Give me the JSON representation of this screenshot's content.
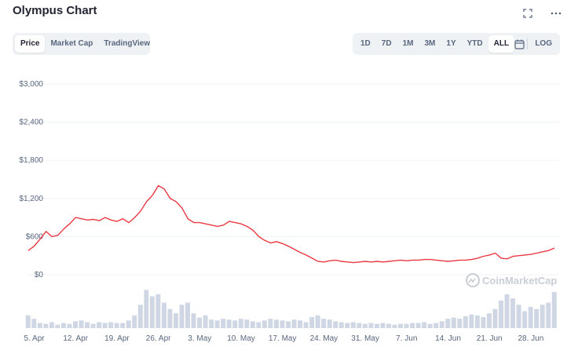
{
  "header": {
    "title": "Olympus Chart",
    "fullscreen_icon": "expand-icon",
    "more_icon": "more-horizontal-icon"
  },
  "view_tabs": [
    {
      "label": "Price",
      "active": true
    },
    {
      "label": "Market Cap",
      "active": false
    },
    {
      "label": "TradingView",
      "active": false
    }
  ],
  "range_tabs": [
    {
      "label": "1D",
      "active": false
    },
    {
      "label": "7D",
      "active": false
    },
    {
      "label": "1M",
      "active": false
    },
    {
      "label": "3M",
      "active": false
    },
    {
      "label": "1Y",
      "active": false
    },
    {
      "label": "YTD",
      "active": false
    },
    {
      "label": "ALL",
      "active": true
    }
  ],
  "calendar_icon": "calendar-icon",
  "log_label": "LOG",
  "watermark": "CoinMarketCap",
  "colors": {
    "price_line": "#ea3943",
    "volume_bar": "#cfd6e4",
    "grid": "#eff2f5",
    "axis_text": "#58667e"
  },
  "chart_data": {
    "type": "line",
    "title": "",
    "xlabel": "",
    "ylabel": "",
    "ylim": [
      0,
      3000
    ],
    "yticks": [
      "$3,000",
      "$2,400",
      "$1,800",
      "$1,200",
      "$600",
      "$0"
    ],
    "ytick_values": [
      3000,
      2400,
      1800,
      1200,
      600,
      0
    ],
    "xticks": [
      "5. Apr",
      "12. Apr",
      "19. Apr",
      "26. Apr",
      "3. May",
      "10. May",
      "17. May",
      "24. May",
      "31. May",
      "7. Jun",
      "14. Jun",
      "21. Jun",
      "28. Jun"
    ],
    "grid": true,
    "series": [
      {
        "x": [
          "2021-04-04",
          "2021-04-05",
          "2021-04-06",
          "2021-04-07",
          "2021-04-08",
          "2021-04-09",
          "2021-04-10",
          "2021-04-11",
          "2021-04-12",
          "2021-04-13",
          "2021-04-14",
          "2021-04-15",
          "2021-04-16",
          "2021-04-17",
          "2021-04-18",
          "2021-04-19",
          "2021-04-20",
          "2021-04-21",
          "2021-04-22",
          "2021-04-23",
          "2021-04-24",
          "2021-04-25",
          "2021-04-26",
          "2021-04-27",
          "2021-04-28",
          "2021-04-29",
          "2021-04-30",
          "2021-05-01",
          "2021-05-02",
          "2021-05-03",
          "2021-05-04",
          "2021-05-05",
          "2021-05-06",
          "2021-05-07",
          "2021-05-08",
          "2021-05-09",
          "2021-05-10",
          "2021-05-11",
          "2021-05-12",
          "2021-05-13",
          "2021-05-14",
          "2021-05-15",
          "2021-05-16",
          "2021-05-17",
          "2021-05-18",
          "2021-05-19",
          "2021-05-20",
          "2021-05-21",
          "2021-05-22",
          "2021-05-23",
          "2021-05-24",
          "2021-05-25",
          "2021-05-26",
          "2021-05-27",
          "2021-05-28",
          "2021-05-29",
          "2021-05-30",
          "2021-05-31",
          "2021-06-01",
          "2021-06-02",
          "2021-06-03",
          "2021-06-04",
          "2021-06-05",
          "2021-06-06",
          "2021-06-07",
          "2021-06-08",
          "2021-06-09",
          "2021-06-10",
          "2021-06-11",
          "2021-06-12",
          "2021-06-13",
          "2021-06-14",
          "2021-06-15",
          "2021-06-16",
          "2021-06-17",
          "2021-06-18",
          "2021-06-19",
          "2021-06-20",
          "2021-06-21",
          "2021-06-22",
          "2021-06-23",
          "2021-06-24",
          "2021-06-25",
          "2021-06-26",
          "2021-06-27",
          "2021-06-28",
          "2021-06-29",
          "2021-06-30",
          "2021-07-01",
          "2021-07-02"
        ],
        "values": [
          380,
          450,
          560,
          680,
          600,
          620,
          720,
          800,
          900,
          880,
          860,
          870,
          850,
          900,
          860,
          840,
          880,
          820,
          900,
          1000,
          1150,
          1250,
          1400,
          1350,
          1200,
          1150,
          1050,
          880,
          820,
          820,
          800,
          780,
          760,
          780,
          840,
          820,
          800,
          760,
          700,
          600,
          540,
          500,
          520,
          490,
          450,
          400,
          350,
          310,
          260,
          210,
          200,
          220,
          230,
          210,
          200,
          190,
          200,
          210,
          200,
          210,
          200,
          210,
          220,
          230,
          220,
          230,
          230,
          240,
          240,
          230,
          220,
          210,
          220,
          230,
          230,
          240,
          260,
          290,
          310,
          340,
          260,
          250,
          290,
          300,
          310,
          320,
          340,
          360,
          380,
          420
        ],
        "volume": [
          0.3,
          0.22,
          0.12,
          0.1,
          0.14,
          0.08,
          0.12,
          0.1,
          0.16,
          0.18,
          0.14,
          0.1,
          0.14,
          0.12,
          0.14,
          0.12,
          0.12,
          0.18,
          0.3,
          0.55,
          0.9,
          0.75,
          0.8,
          0.6,
          0.45,
          0.35,
          0.55,
          0.6,
          0.35,
          0.25,
          0.3,
          0.2,
          0.18,
          0.22,
          0.2,
          0.18,
          0.22,
          0.2,
          0.16,
          0.14,
          0.18,
          0.22,
          0.2,
          0.18,
          0.16,
          0.2,
          0.18,
          0.14,
          0.26,
          0.3,
          0.22,
          0.2,
          0.16,
          0.14,
          0.12,
          0.14,
          0.12,
          0.1,
          0.12,
          0.1,
          0.12,
          0.1,
          0.08,
          0.1,
          0.1,
          0.12,
          0.12,
          0.14,
          0.1,
          0.12,
          0.16,
          0.22,
          0.25,
          0.22,
          0.28,
          0.32,
          0.3,
          0.26,
          0.35,
          0.45,
          0.65,
          0.8,
          0.7,
          0.55,
          0.4,
          0.5,
          0.45,
          0.55,
          0.6,
          0.85
        ]
      }
    ]
  }
}
